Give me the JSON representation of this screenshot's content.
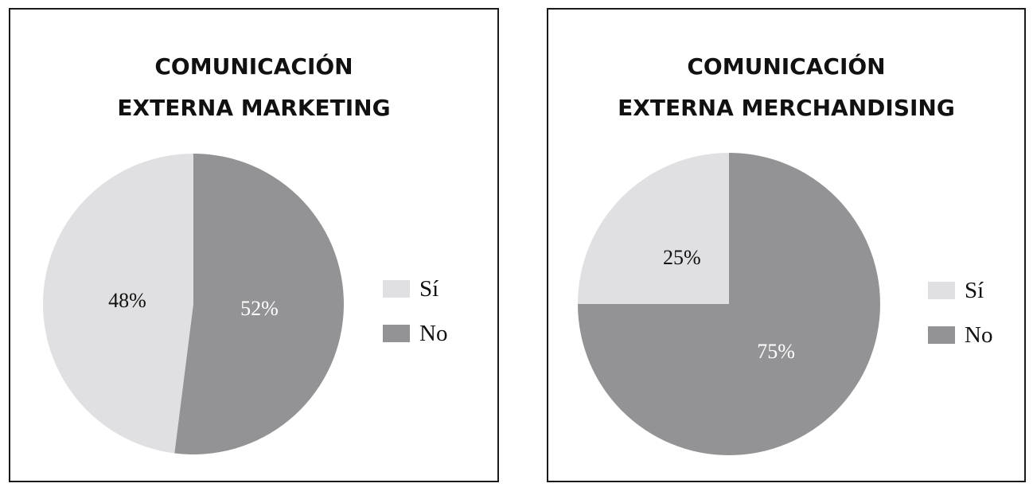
{
  "chart_data": [
    {
      "type": "pie",
      "title": [
        "COMUNICACIÓN",
        "EXTERNA MARKETING"
      ],
      "slices": [
        {
          "label": "Sí",
          "value": 48,
          "display": "48%",
          "color": "#e0e0e2",
          "text_color": "#111111"
        },
        {
          "label": "No",
          "value": 52,
          "display": "52%",
          "color": "#939396",
          "text_color": "#ffffff"
        }
      ],
      "legend": {
        "position": "right"
      }
    },
    {
      "type": "pie",
      "title": [
        "COMUNICACIÓN",
        "EXTERNA MERCHANDISING"
      ],
      "slices": [
        {
          "label": "Sí",
          "value": 25,
          "display": "25%",
          "color": "#e0e0e2",
          "text_color": "#111111"
        },
        {
          "label": "No",
          "value": 75,
          "display": "75%",
          "color": "#939396",
          "text_color": "#ffffff"
        }
      ],
      "legend": {
        "position": "right"
      }
    }
  ]
}
